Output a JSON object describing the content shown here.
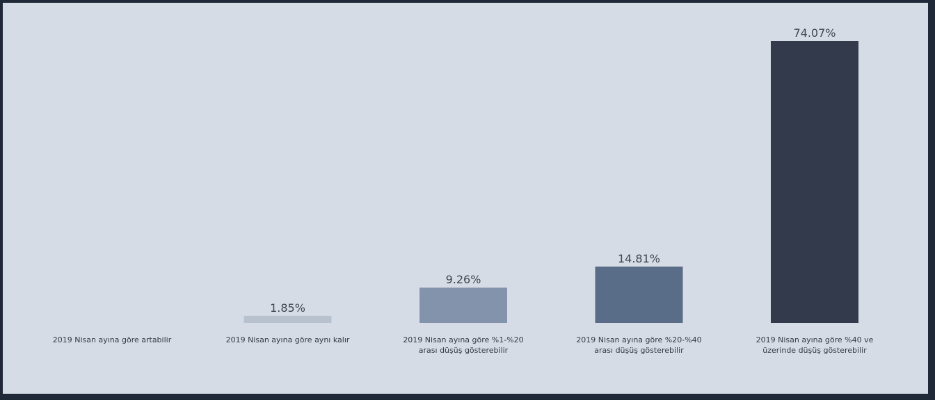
{
  "chart_data": {
    "type": "bar",
    "categories": [
      "2019 Nisan ayına göre artabilir",
      "2019 Nisan ayına göre aynı kalır",
      "2019 Nisan ayına göre %1-%20\narası düşüş gösterebilir",
      "2019 Nisan ayına göre %20-%40\narası düşüş gösterebilir",
      "2019 Nisan ayına göre %40 ve\nüzerinde düşüş gösterebilir"
    ],
    "values": [
      0,
      1.85,
      9.26,
      14.81,
      74.07
    ],
    "labels": [
      "",
      "1.85%",
      "9.26%",
      "14.81%",
      "74.07%"
    ],
    "colors": [
      "#c4ccd8",
      "#b8c2cf",
      "#8293ab",
      "#5a6d88",
      "#323a4b"
    ],
    "ylim": [
      0,
      74.07
    ],
    "grid": false,
    "legend": "none"
  }
}
